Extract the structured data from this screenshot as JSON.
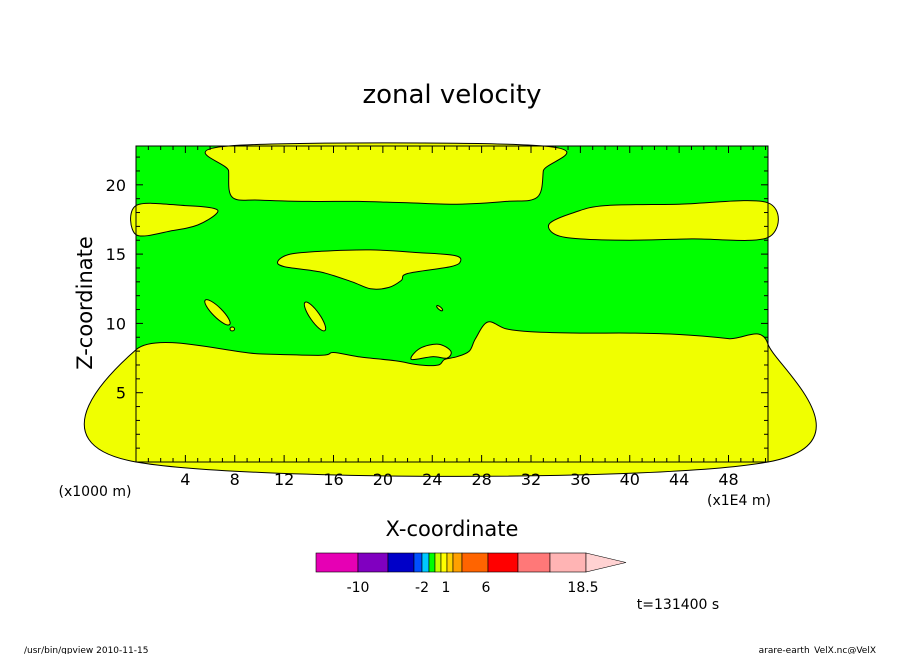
{
  "chart_data": {
    "type": "heatmap",
    "subtype": "filled-contour",
    "title": "zonal velocity",
    "xlabel": "X-coordinate",
    "ylabel": "Z-coordinate",
    "x_unit_left": "(x1000 m)",
    "x_unit_right": "(x1E4 m)",
    "xlim": [
      0,
      51.2
    ],
    "ylim": [
      0,
      22.8
    ],
    "x_ticks": [
      4,
      8,
      12,
      16,
      20,
      24,
      28,
      32,
      36,
      40,
      44,
      48
    ],
    "y_ticks": [
      5,
      10,
      15,
      20
    ],
    "x_tick_labels": [
      "4",
      "8",
      "12",
      "16",
      "20",
      "24",
      "28",
      "32",
      "36",
      "40",
      "44",
      "48"
    ],
    "y_tick_labels": [
      "5",
      "10",
      "15",
      "20"
    ],
    "regions": [
      {
        "name": "lower-band",
        "level": "1 to 6",
        "color": "#f0ff00",
        "outline": [
          [
            0,
            8.1
          ],
          [
            10,
            7.8
          ],
          [
            15,
            7.7
          ],
          [
            16,
            7.9
          ],
          [
            18,
            7.6
          ],
          [
            21,
            7.3
          ],
          [
            23,
            7.0
          ],
          [
            24.5,
            7.0
          ],
          [
            25,
            7.4
          ],
          [
            26,
            7.6
          ],
          [
            27,
            8.0
          ],
          [
            27.5,
            8.9
          ],
          [
            28.5,
            10.1
          ],
          [
            30,
            9.6
          ],
          [
            32,
            9.4
          ],
          [
            36,
            9.3
          ],
          [
            40,
            9.3
          ],
          [
            44,
            9.2
          ],
          [
            48,
            8.9
          ],
          [
            51.2,
            8.5
          ],
          [
            51.2,
            0
          ],
          [
            0,
            0
          ]
        ]
      },
      {
        "name": "upper-band",
        "level": "1 to 6",
        "color": "#f0ff00",
        "outline": [
          [
            7.5,
            22.8
          ],
          [
            7.5,
            21.0
          ],
          [
            7.8,
            19.1
          ],
          [
            10,
            18.9
          ],
          [
            14,
            18.8
          ],
          [
            18,
            18.8
          ],
          [
            22,
            18.7
          ],
          [
            26,
            18.6
          ],
          [
            30,
            18.8
          ],
          [
            32.5,
            19.1
          ],
          [
            33,
            21.0
          ],
          [
            33,
            22.8
          ]
        ]
      },
      {
        "name": "left-tongue",
        "level": "1 to 6",
        "color": "#f0ff00",
        "outline": [
          [
            0,
            18.5
          ],
          [
            4,
            18.5
          ],
          [
            6.3,
            18.3
          ],
          [
            6.5,
            17.9
          ],
          [
            5,
            17.1
          ],
          [
            3,
            16.7
          ],
          [
            0,
            16.4
          ]
        ]
      },
      {
        "name": "right-tongue",
        "level": "1 to 6",
        "color": "#f0ff00",
        "outline": [
          [
            51.2,
            18.7
          ],
          [
            44,
            18.6
          ],
          [
            38,
            18.5
          ],
          [
            35.5,
            18.0
          ],
          [
            33.5,
            17.2
          ],
          [
            34,
            16.4
          ],
          [
            36,
            16.1
          ],
          [
            40,
            16.0
          ],
          [
            45,
            16.1
          ],
          [
            51.2,
            16.2
          ]
        ]
      },
      {
        "name": "center-lens",
        "level": "1 to 6",
        "color": "#f0ff00",
        "outline": [
          [
            11.5,
            14.5
          ],
          [
            12.5,
            15.0
          ],
          [
            15,
            15.2
          ],
          [
            19,
            15.3
          ],
          [
            23,
            15.1
          ],
          [
            25.8,
            14.9
          ],
          [
            26.3,
            14.5
          ],
          [
            25.5,
            14.1
          ],
          [
            22,
            13.6
          ],
          [
            21.5,
            13.1
          ],
          [
            20.5,
            12.6
          ],
          [
            19,
            12.5
          ],
          [
            17.5,
            13.0
          ],
          [
            15,
            13.7
          ],
          [
            12,
            14.1
          ]
        ]
      }
    ],
    "colorbar": {
      "ticks": [
        "-10",
        "-2",
        "1",
        "6",
        "18.5"
      ],
      "colors": [
        "#e600b4",
        "#8000c0",
        "#0000c8",
        "#0050ff",
        "#00c8ff",
        "#00ff00",
        "#c8ff00",
        "#ffff00",
        "#ffd200",
        "#ffa000",
        "#ff6400",
        "#ff0000",
        "#ff7878",
        "#ffb4b4",
        "#ffd2d2"
      ]
    }
  },
  "annotations": {
    "time": "t=131400 s",
    "footer_left": "/usr/bin/gpview 2010-11-15",
    "footer_right": "arare-earth_VelX.nc@VelX"
  }
}
